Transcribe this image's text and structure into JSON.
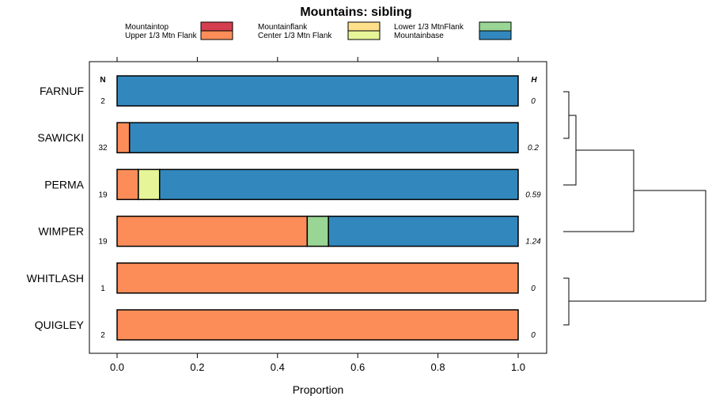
{
  "chart_data": {
    "type": "bar",
    "orientation": "horizontal",
    "stacked": true,
    "title": "Mountains: sibling",
    "xlabel": "Proportion",
    "ylabel": "",
    "xlim": [
      0,
      1
    ],
    "x_ticks": [
      "0.0",
      "0.2",
      "0.4",
      "0.6",
      "0.8",
      "1.0"
    ],
    "x_tick_values": [
      0,
      0.2,
      0.4,
      0.6,
      0.8,
      1.0
    ],
    "n_header": "N",
    "h_header": "H",
    "legend": [
      {
        "name": "Mountaintop",
        "color": "#d53e4f"
      },
      {
        "name": "Upper 1/3 Mtn Flank",
        "color": "#fc8d59"
      },
      {
        "name": "Mountainflank",
        "color": "#fee08b"
      },
      {
        "name": "Center 1/3 Mtn Flank",
        "color": "#e6f598"
      },
      {
        "name": "Lower 1/3 MtnFlank",
        "color": "#99d594"
      },
      {
        "name": "Mountainbase",
        "color": "#3288bd"
      }
    ],
    "categories": [
      "FARNUF",
      "SAWICKI",
      "PERMA",
      "WIMPER",
      "WHITLASH",
      "QUIGLEY"
    ],
    "n_values": [
      "2",
      "32",
      "19",
      "19",
      "1",
      "2"
    ],
    "h_values": [
      "0",
      "0.2",
      "0.59",
      "1.24",
      "0",
      "0"
    ],
    "series": [
      {
        "name": "Mountaintop",
        "values": [
          0,
          0,
          0,
          0,
          0,
          0
        ]
      },
      {
        "name": "Upper 1/3 Mtn Flank",
        "values": [
          0,
          0.031,
          0.053,
          0.474,
          1.0,
          1.0
        ]
      },
      {
        "name": "Mountainflank",
        "values": [
          0,
          0,
          0,
          0,
          0,
          0
        ]
      },
      {
        "name": "Center 1/3 Mtn Flank",
        "values": [
          0,
          0,
          0.053,
          0,
          0,
          0
        ]
      },
      {
        "name": "Lower 1/3 MtnFlank",
        "values": [
          0,
          0,
          0,
          0.053,
          0,
          0
        ]
      },
      {
        "name": "Mountainbase",
        "values": [
          1.0,
          0.969,
          0.894,
          0.473,
          0,
          0
        ]
      }
    ],
    "dendrogram": "hierarchical clustering tree grouping {FARNUF, SAWICKI}, PERMA, WIMPER and {WHITLASH, QUIGLEY}"
  }
}
